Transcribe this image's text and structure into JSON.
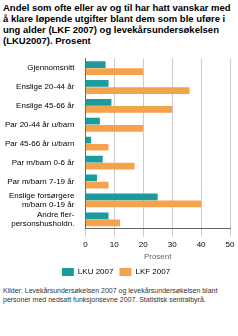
{
  "chart_data": {
    "type": "bar",
    "orientation": "horizontal",
    "title": "Andel som ofte eller av og til har hatt vanskar med å klare løpende utgifter blant dem som ble uføre i ung alder (LKF 2007) og levekårsundersøkelsen (LKU2007). Prosent",
    "categories": [
      "Gjennomsnitt",
      "Enslige 20-44 år",
      "Enslige 45-66 år",
      "Par 20-44 år u/barn",
      "Par 45-66 år u/barn",
      "Par m/barn 0-6 år",
      "Par m/barn 7-19 år",
      "Enslige forsørgere\nm/barn 0-19 år",
      "Andre fler-\npersonshusholdn."
    ],
    "series": [
      {
        "name": "LKU 2007",
        "color": "#1b9b9b",
        "values": [
          7,
          8,
          9,
          5,
          2,
          6,
          4,
          25,
          8
        ]
      },
      {
        "name": "LKF 2007",
        "color": "#f5a24c",
        "values": [
          20,
          36,
          30,
          20,
          8,
          17,
          8,
          40,
          12
        ]
      }
    ],
    "x_label": "Prosent",
    "xlim": [
      0,
      50
    ],
    "xticks": [
      0,
      10,
      20,
      30,
      40,
      50
    ],
    "grid": true,
    "legend": "bottom",
    "source": "Kilder: Levekårsundersøkelsen 2007 og levekårsundersøkelsen blant personer med nedsatt funksjonsevne 2007. Statistisk sentralbyrå."
  }
}
